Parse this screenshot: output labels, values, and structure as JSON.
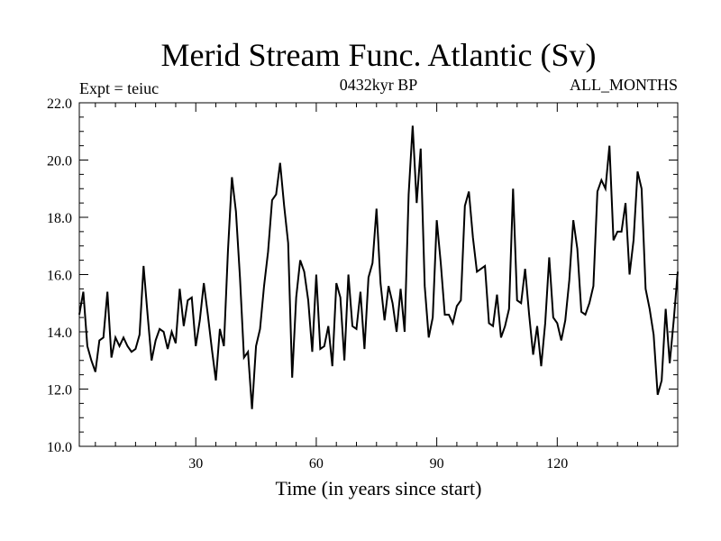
{
  "chart_data": {
    "type": "line",
    "title": "Merid Stream Func. Atlantic (Sv)",
    "subtitle_left": "Expt = teiuc",
    "subtitle_center": "0432kyr BP",
    "subtitle_right": "ALL_MONTHS",
    "xlabel": "Time (in years since start)",
    "ylabel": "",
    "xlim": [
      1,
      150
    ],
    "ylim": [
      10,
      22
    ],
    "xticks": [
      30,
      60,
      90,
      120
    ],
    "yticks": [
      10,
      12,
      14,
      16,
      18,
      20,
      22
    ],
    "x_tick_labels": [
      "30",
      "60",
      "90",
      "120"
    ],
    "y_tick_labels": [
      "10.0",
      "12.0",
      "14.0",
      "16.0",
      "18.0",
      "20.0",
      "22.0"
    ],
    "grid": false,
    "series": [
      {
        "name": "Merid Stream Func. Atlantic",
        "x_start": 1,
        "x_step": 1,
        "values": [
          14.6,
          15.4,
          13.5,
          13.0,
          12.6,
          13.7,
          13.8,
          15.4,
          13.1,
          13.8,
          13.5,
          13.8,
          13.5,
          13.3,
          13.4,
          13.9,
          16.3,
          14.6,
          13.0,
          13.7,
          14.1,
          14.0,
          13.4,
          14.0,
          13.6,
          15.5,
          14.2,
          15.1,
          15.2,
          13.5,
          14.4,
          15.7,
          14.6,
          13.4,
          12.3,
          14.1,
          13.5,
          16.8,
          19.4,
          18.2,
          15.9,
          13.1,
          13.3,
          11.3,
          13.5,
          14.1,
          15.6,
          16.8,
          18.6,
          18.8,
          19.9,
          18.4,
          17.1,
          12.4,
          15.2,
          16.5,
          16.1,
          15.1,
          13.3,
          16.0,
          13.4,
          13.5,
          14.2,
          12.8,
          15.7,
          15.2,
          13.0,
          16.0,
          14.2,
          14.1,
          15.4,
          13.4,
          15.9,
          16.4,
          18.3,
          15.7,
          14.4,
          15.6,
          15.0,
          14.0,
          15.5,
          14.0,
          18.8,
          21.2,
          18.5,
          20.4,
          15.6,
          13.8,
          14.5,
          17.9,
          16.4,
          14.6,
          14.6,
          14.3,
          14.9,
          15.1,
          18.4,
          18.9,
          17.3,
          16.1,
          16.2,
          16.3,
          14.3,
          14.2,
          15.3,
          13.8,
          14.2,
          14.8,
          19.0,
          15.1,
          15.0,
          16.2,
          14.6,
          13.2,
          14.2,
          12.8,
          14.3,
          16.6,
          14.5,
          14.3,
          13.7,
          14.4,
          15.8,
          17.9,
          16.9,
          14.7,
          14.6,
          15.0,
          15.6,
          18.9,
          19.3,
          19.0,
          20.5,
          17.2,
          17.5,
          17.5,
          18.5,
          16.0,
          17.2,
          19.6,
          19.0,
          15.5,
          14.8,
          13.9,
          11.8,
          12.3,
          14.8,
          12.9,
          14.4,
          16.1
        ]
      }
    ]
  }
}
